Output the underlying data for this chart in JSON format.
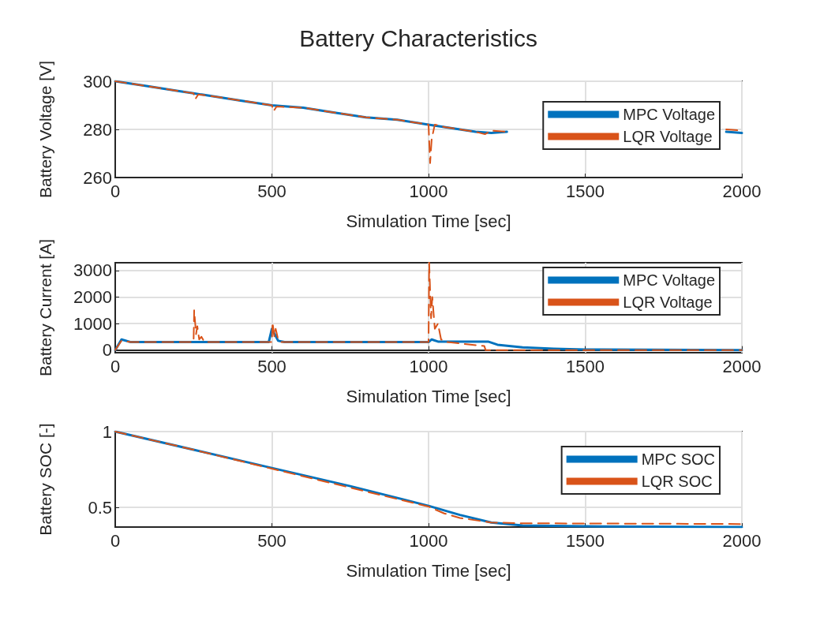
{
  "chart_data": [
    {
      "type": "line",
      "title": "Battery Characteristics",
      "xlabel": "Simulation Time [sec]",
      "ylabel": "Battery Voltage [V]",
      "xlim": [
        0,
        2000
      ],
      "xticks": [
        0,
        500,
        1000,
        1500,
        2000
      ],
      "ylim": [
        260,
        300
      ],
      "yticks": [
        260,
        280,
        300
      ],
      "grid": true,
      "legend": "top right",
      "marker": "none",
      "series": [
        {
          "name": "MPC Voltage",
          "color": "#0072bd",
          "line_style": "solid",
          "x": [
            0,
            100,
            200,
            250,
            300,
            400,
            500,
            600,
            700,
            800,
            900,
            1000,
            1050,
            1100,
            1150,
            1200,
            1250,
            1300,
            1950,
            2000
          ],
          "values": [
            300,
            298,
            296,
            295,
            294,
            292,
            290,
            289,
            287,
            285,
            284,
            282,
            281,
            280,
            279,
            278.5,
            279,
            null,
            279,
            278.5
          ]
        },
        {
          "name": "LQR Voltage",
          "color": "#d95319",
          "line_style": "dashed",
          "x": [
            0,
            100,
            200,
            250,
            255,
            265,
            300,
            400,
            500,
            505,
            515,
            600,
            700,
            800,
            900,
            1000,
            1005,
            1010,
            1020,
            1050,
            1100,
            1150,
            1180,
            1200,
            1250,
            1300,
            1950,
            2000
          ],
          "values": [
            300,
            298,
            296,
            295,
            292.5,
            294.5,
            294,
            292,
            290,
            287.5,
            289.5,
            289,
            287,
            285,
            284,
            282,
            266,
            276,
            282,
            281,
            280,
            279,
            278,
            279.5,
            279,
            null,
            280,
            279.5
          ]
        }
      ]
    },
    {
      "type": "line",
      "xlabel": "Simulation Time [sec]",
      "ylabel": "Battery Current [A]",
      "xlim": [
        0,
        2000
      ],
      "xticks": [
        0,
        500,
        1000,
        1500,
        2000
      ],
      "ylim": [
        -100,
        3300
      ],
      "yticks": [
        0,
        1000,
        2000,
        3000
      ],
      "grid": true,
      "legend": "top right",
      "marker": "none",
      "series": [
        {
          "name": "MPC Voltage",
          "color": "#0072bd",
          "line_style": "solid",
          "x": [
            0,
            20,
            50,
            490,
            500,
            520,
            540,
            1000,
            1010,
            1030,
            1190,
            1220,
            1300,
            1400,
            1500,
            2000
          ],
          "values": [
            0,
            400,
            300,
            300,
            800,
            350,
            300,
            300,
            400,
            320,
            320,
            200,
            100,
            50,
            20,
            0
          ]
        },
        {
          "name": "LQR Voltage",
          "color": "#d95319",
          "line_style": "dashed",
          "x": [
            0,
            20,
            50,
            250,
            252,
            258,
            262,
            268,
            275,
            285,
            500,
            502,
            508,
            512,
            520,
            530,
            1000,
            1002,
            1008,
            1012,
            1020,
            1030,
            1040,
            1060,
            1178,
            1182,
            2000
          ],
          "values": [
            0,
            350,
            300,
            300,
            1500,
            600,
            900,
            400,
            500,
            300,
            300,
            1050,
            500,
            800,
            400,
            300,
            300,
            3300,
            1200,
            2000,
            800,
            1000,
            400,
            300,
            150,
            0,
            0
          ]
        }
      ]
    },
    {
      "type": "line",
      "xlabel": "Simulation Time [sec]",
      "ylabel": "Battery SOC [-]",
      "xlim": [
        0,
        2000
      ],
      "xticks": [
        0,
        500,
        1000,
        1500,
        2000
      ],
      "ylim": [
        0.37,
        1
      ],
      "yticks": [
        0.5,
        1
      ],
      "grid": true,
      "legend": "top right",
      "marker": "none",
      "series": [
        {
          "name": "MPC SOC",
          "color": "#0072bd",
          "line_style": "solid",
          "x": [
            0,
            250,
            500,
            750,
            1000,
            1100,
            1200,
            1300,
            1500,
            2000
          ],
          "values": [
            1,
            0.88,
            0.76,
            0.64,
            0.51,
            0.45,
            0.4,
            0.38,
            0.375,
            0.37
          ]
        },
        {
          "name": "LQR SOC",
          "color": "#d95319",
          "line_style": "dashed",
          "x": [
            0,
            250,
            500,
            750,
            1000,
            1050,
            1100,
            1200,
            1300,
            2000
          ],
          "values": [
            1,
            0.88,
            0.755,
            0.63,
            0.505,
            0.46,
            0.43,
            0.4,
            0.395,
            0.39
          ]
        }
      ]
    }
  ]
}
